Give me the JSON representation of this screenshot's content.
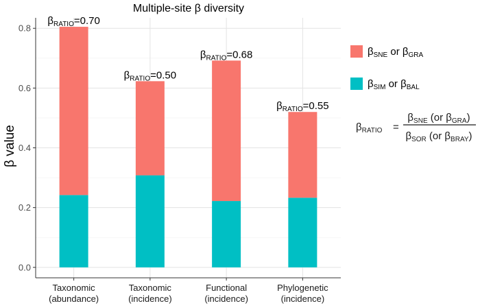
{
  "chart_data": {
    "type": "bar",
    "stacked": true,
    "title": "Multiple-site β diversity",
    "xlabel": "",
    "ylabel": "β value",
    "ylim": [
      -0.035,
      0.835
    ],
    "yticks": [
      "0.0",
      "0.2",
      "0.4",
      "0.6",
      "0.8"
    ],
    "ytick_values": [
      0.0,
      0.2,
      0.4,
      0.6,
      0.8
    ],
    "grid": true,
    "categories": [
      [
        "Taxonomic",
        "(abundance)"
      ],
      [
        "Taxonomic",
        "(incidence)"
      ],
      [
        "Functional",
        "(incidence)"
      ],
      [
        "Phylogenetic",
        "(incidence)"
      ]
    ],
    "series": [
      {
        "name": "βSIM or βBAL",
        "color": "#00BFC4",
        "values": [
          0.242,
          0.308,
          0.222,
          0.233
        ]
      },
      {
        "name": "βSNE or βGRA",
        "color": "#F8766D",
        "values": [
          0.563,
          0.315,
          0.47,
          0.287
        ]
      }
    ],
    "ratio_labels": [
      {
        "symbol": "β",
        "sub": "RATIO",
        "value": "=0.70"
      },
      {
        "symbol": "β",
        "sub": "RATIO",
        "value": "=0.50"
      },
      {
        "symbol": "β",
        "sub": "RATIO",
        "value": "=0.68"
      },
      {
        "symbol": "β",
        "sub": "RATIO",
        "value": "=0.55"
      }
    ],
    "legend": {
      "position": "right",
      "items": [
        {
          "color": "#F8766D",
          "parts": [
            [
              "β",
              ""
            ],
            [
              "SNE",
              "sub"
            ],
            [
              " or β",
              ""
            ],
            [
              "GRA",
              "sub"
            ]
          ]
        },
        {
          "color": "#00BFC4",
          "parts": [
            [
              "β",
              ""
            ],
            [
              "SIM",
              "sub"
            ],
            [
              " or β",
              ""
            ],
            [
              "BAL",
              "sub"
            ]
          ]
        }
      ]
    },
    "formula": {
      "lhs": [
        [
          "β",
          ""
        ],
        [
          "RATIO",
          "sub"
        ]
      ],
      "equals": "=",
      "numerator": [
        [
          "β",
          ""
        ],
        [
          "SNE",
          "sub"
        ],
        [
          " (or β",
          ""
        ],
        [
          "GRA",
          "sub"
        ],
        [
          ")",
          ""
        ]
      ],
      "denominator": [
        [
          "β",
          ""
        ],
        [
          "SOR",
          "sub"
        ],
        [
          " (or β",
          ""
        ],
        [
          "BRAY",
          "sub"
        ],
        [
          ")",
          ""
        ]
      ]
    }
  }
}
